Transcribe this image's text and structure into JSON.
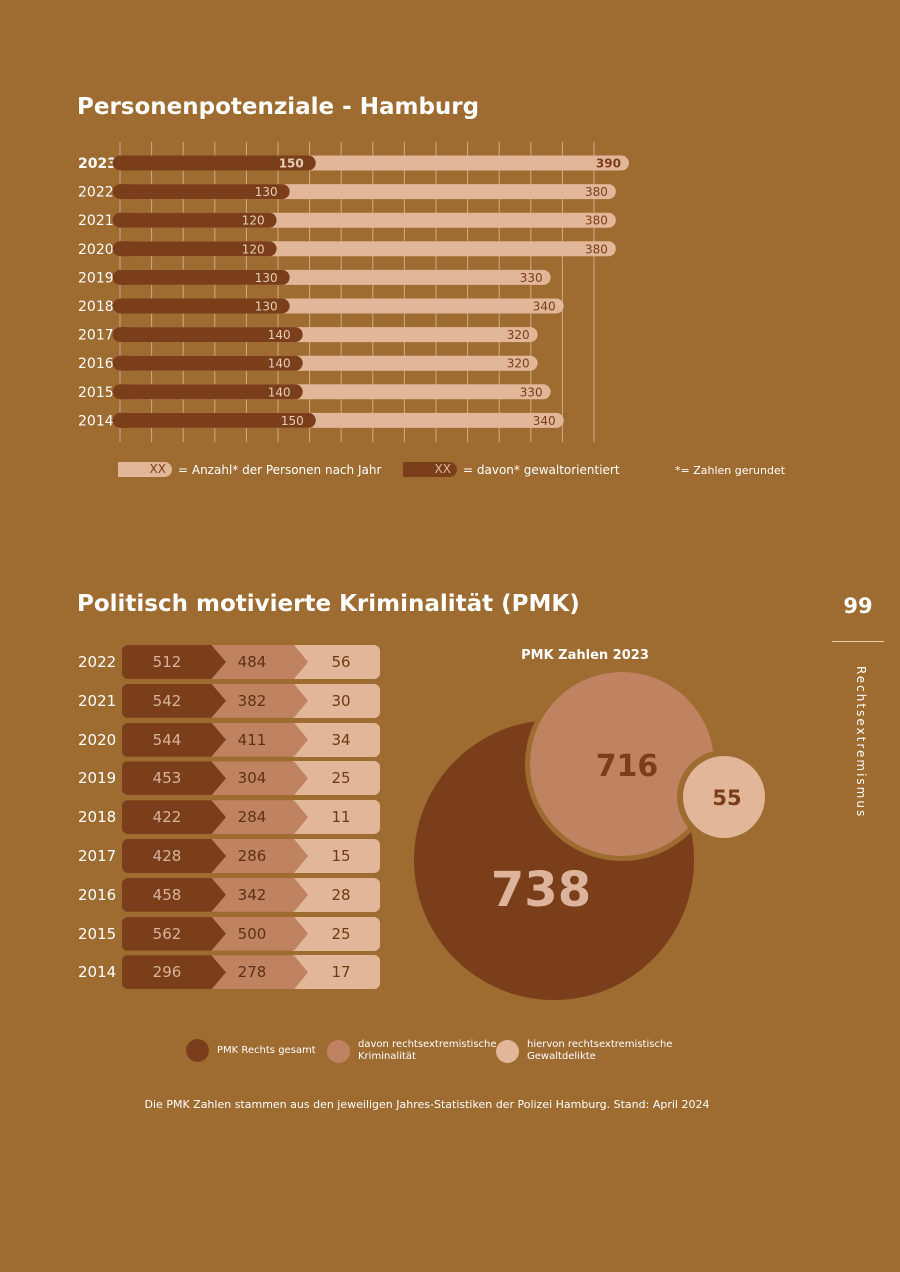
{
  "section1": {
    "title": "Personenpotenziale - Hamburg",
    "legend": {
      "total_swatch": "XX",
      "total_label": "= Anzahl* der Personen nach Jahr",
      "violent_swatch": "XX",
      "violent_label": "= davon* gewaltorientiert",
      "note": "*= Zahlen gerundet"
    }
  },
  "section2": {
    "title": "Politisch motivierte Kriminalität (PMK)",
    "bubble_title": "PMK Zahlen 2023",
    "legend": {
      "gesamt": "PMK Rechts gesamt",
      "rechtsextrem_line1": "davon rechtsextremistische",
      "rechtsextrem_line2": "Kriminalität",
      "gewalt_line1": "hiervon rechtsextremistische",
      "gewalt_line2": "Gewaltdelikte"
    },
    "source": "Die PMK Zahlen stammen aus den jeweiligen Jahres-Statistiken der Polizei Hamburg. Stand: April 2024"
  },
  "sidebar": {
    "page_number": "99",
    "chapter": "Rechtsextremismus"
  },
  "colors": {
    "background": "#9e6b31",
    "dark": "#7a3f1a",
    "mid": "#bf8361",
    "light": "#e2b699"
  },
  "chart_data": [
    {
      "type": "bar",
      "title": "Personenpotenziale - Hamburg",
      "orientation": "horizontal",
      "categories": [
        "2023",
        "2022",
        "2021",
        "2020",
        "2019",
        "2018",
        "2017",
        "2016",
        "2015",
        "2014"
      ],
      "series": [
        {
          "name": "Anzahl* der Personen nach Jahr",
          "values": [
            390,
            380,
            380,
            380,
            330,
            340,
            320,
            320,
            330,
            340
          ]
        },
        {
          "name": "davon* gewaltorientiert",
          "values": [
            150,
            130,
            120,
            120,
            130,
            130,
            140,
            140,
            140,
            150
          ]
        }
      ],
      "xlim": [
        0,
        450
      ]
    },
    {
      "type": "table",
      "title": "Politisch motivierte Kriminalität (PMK)",
      "columns": [
        "PMK Rechts gesamt",
        "davon rechtsextremistische Kriminalität",
        "hiervon rechtsextremistische Gewaltdelikte"
      ],
      "rows": [
        {
          "year": "2022",
          "values": [
            512,
            484,
            56
          ]
        },
        {
          "year": "2021",
          "values": [
            542,
            382,
            30
          ]
        },
        {
          "year": "2020",
          "values": [
            544,
            411,
            34
          ]
        },
        {
          "year": "2019",
          "values": [
            453,
            304,
            25
          ]
        },
        {
          "year": "2018",
          "values": [
            422,
            284,
            11
          ]
        },
        {
          "year": "2017",
          "values": [
            428,
            286,
            15
          ]
        },
        {
          "year": "2016",
          "values": [
            458,
            342,
            28
          ]
        },
        {
          "year": "2015",
          "values": [
            562,
            500,
            25
          ]
        },
        {
          "year": "2014",
          "values": [
            296,
            278,
            17
          ]
        }
      ]
    },
    {
      "type": "bubble",
      "title": "PMK Zahlen 2023",
      "categories": [
        "PMK Rechts gesamt",
        "davon rechtsextremistische Kriminalität",
        "hiervon rechtsextremistische Gewaltdelikte"
      ],
      "values": [
        738,
        716,
        55
      ]
    }
  ]
}
